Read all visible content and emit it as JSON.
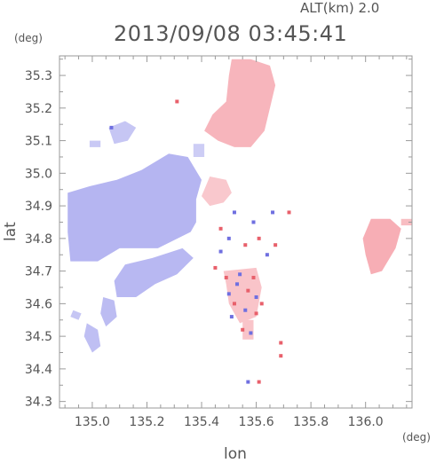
{
  "header": {
    "timestamp": "2013/09/08 03:45:41",
    "altitude": "ALT(km)  2.0",
    "y_unit": "(deg)",
    "x_unit": "(deg)"
  },
  "colors": {
    "positive": "#f3a8ad",
    "negative": "#b9b9f2",
    "axis": "#9a9a9a",
    "text": "#555555"
  },
  "chart_data": {
    "type": "heatmap",
    "xlabel": "lon",
    "ylabel": "lat",
    "xlim": [
      134.88,
      136.17
    ],
    "ylim": [
      34.28,
      35.36
    ],
    "xticks": [
      "135.0",
      "135.2",
      "135.4",
      "135.6",
      "135.8",
      "136.0"
    ],
    "xtick_values": [
      135.0,
      135.2,
      135.4,
      135.6,
      135.8,
      136.0
    ],
    "yticks": [
      "34.3",
      "34.4",
      "34.5",
      "34.6",
      "34.7",
      "34.8",
      "34.9",
      "35.0",
      "35.1",
      "35.2",
      "35.3"
    ],
    "ytick_values": [
      34.3,
      34.4,
      34.5,
      34.6,
      34.7,
      34.8,
      34.9,
      35.0,
      35.1,
      35.2,
      35.3
    ],
    "regions": [
      {
        "sign": "positive",
        "intensity": 0.45,
        "poly": [
          [
            135.51,
            35.35
          ],
          [
            135.58,
            35.35
          ],
          [
            135.65,
            35.33
          ],
          [
            135.67,
            35.27
          ],
          [
            135.65,
            35.2
          ],
          [
            135.63,
            35.13
          ],
          [
            135.58,
            35.08
          ],
          [
            135.52,
            35.08
          ],
          [
            135.46,
            35.1
          ],
          [
            135.41,
            35.13
          ],
          [
            135.44,
            35.18
          ],
          [
            135.49,
            35.22
          ],
          [
            135.5,
            35.3
          ]
        ]
      },
      {
        "sign": "positive",
        "intensity": 0.2,
        "poly": [
          [
            135.43,
            34.99
          ],
          [
            135.49,
            34.98
          ],
          [
            135.51,
            34.94
          ],
          [
            135.48,
            34.91
          ],
          [
            135.43,
            34.9
          ],
          [
            135.4,
            34.93
          ]
        ]
      },
      {
        "sign": "positive",
        "intensity": 0.55,
        "poly": [
          [
            136.02,
            34.86
          ],
          [
            136.09,
            34.86
          ],
          [
            136.13,
            34.83
          ],
          [
            136.11,
            34.77
          ],
          [
            136.06,
            34.7
          ],
          [
            136.02,
            34.69
          ],
          [
            136.0,
            34.75
          ],
          [
            135.99,
            34.8
          ]
        ]
      },
      {
        "sign": "positive",
        "intensity": 0.35,
        "poly": [
          [
            136.13,
            34.86
          ],
          [
            136.17,
            34.86
          ],
          [
            136.17,
            34.84
          ],
          [
            136.13,
            34.84
          ]
        ]
      },
      {
        "sign": "negative",
        "intensity": 0.55,
        "poly": [
          [
            134.91,
            34.94
          ],
          [
            134.99,
            34.96
          ],
          [
            135.09,
            34.98
          ],
          [
            135.18,
            35.01
          ],
          [
            135.28,
            35.06
          ],
          [
            135.35,
            35.05
          ],
          [
            135.4,
            34.98
          ],
          [
            135.38,
            34.92
          ],
          [
            135.38,
            34.85
          ],
          [
            135.36,
            34.82
          ],
          [
            135.24,
            34.77
          ],
          [
            135.1,
            34.77
          ],
          [
            135.02,
            34.73
          ],
          [
            134.92,
            34.73
          ],
          [
            134.91,
            34.82
          ]
        ]
      },
      {
        "sign": "negative",
        "intensity": 0.5,
        "poly": [
          [
            135.12,
            34.72
          ],
          [
            135.22,
            34.74
          ],
          [
            135.33,
            34.77
          ],
          [
            135.37,
            34.74
          ],
          [
            135.31,
            34.69
          ],
          [
            135.23,
            34.66
          ],
          [
            135.16,
            34.62
          ],
          [
            135.09,
            34.62
          ],
          [
            135.08,
            34.67
          ]
        ]
      },
      {
        "sign": "negative",
        "intensity": 0.45,
        "poly": [
          [
            135.04,
            34.62
          ],
          [
            135.08,
            34.61
          ],
          [
            135.09,
            34.56
          ],
          [
            135.05,
            34.53
          ],
          [
            135.03,
            34.57
          ]
        ]
      },
      {
        "sign": "negative",
        "intensity": 0.4,
        "poly": [
          [
            134.98,
            34.54
          ],
          [
            135.02,
            34.52
          ],
          [
            135.03,
            34.47
          ],
          [
            135.0,
            34.45
          ],
          [
            134.97,
            34.5
          ]
        ]
      },
      {
        "sign": "negative",
        "intensity": 0.3,
        "poly": [
          [
            134.93,
            34.58
          ],
          [
            134.96,
            34.57
          ],
          [
            134.95,
            34.55
          ],
          [
            134.92,
            34.56
          ]
        ]
      },
      {
        "sign": "negative",
        "intensity": 0.3,
        "poly": [
          [
            135.06,
            35.14
          ],
          [
            135.12,
            35.16
          ],
          [
            135.16,
            35.14
          ],
          [
            135.13,
            35.1
          ],
          [
            135.08,
            35.09
          ]
        ]
      },
      {
        "sign": "negative",
        "intensity": 0.25,
        "poly": [
          [
            134.99,
            35.1
          ],
          [
            135.03,
            35.1
          ],
          [
            135.03,
            35.08
          ],
          [
            134.99,
            35.08
          ]
        ]
      },
      {
        "sign": "negative",
        "intensity": 0.2,
        "poly": [
          [
            135.37,
            35.09
          ],
          [
            135.41,
            35.09
          ],
          [
            135.41,
            35.05
          ],
          [
            135.37,
            35.05
          ]
        ]
      },
      {
        "sign": "positive",
        "intensity": 0.25,
        "poly": [
          [
            135.48,
            34.7
          ],
          [
            135.6,
            34.71
          ],
          [
            135.62,
            34.65
          ],
          [
            135.6,
            34.56
          ],
          [
            135.54,
            34.54
          ],
          [
            135.5,
            34.6
          ],
          [
            135.49,
            34.66
          ]
        ]
      },
      {
        "sign": "positive",
        "intensity": 0.25,
        "poly": [
          [
            135.55,
            34.55
          ],
          [
            135.59,
            34.55
          ],
          [
            135.59,
            34.49
          ],
          [
            135.55,
            34.49
          ]
        ]
      }
    ],
    "speckles": [
      {
        "sign": "positive",
        "x": 135.47,
        "y": 34.83
      },
      {
        "sign": "negative",
        "x": 135.5,
        "y": 34.8
      },
      {
        "sign": "positive",
        "x": 135.56,
        "y": 34.78
      },
      {
        "sign": "negative",
        "x": 135.59,
        "y": 34.85
      },
      {
        "sign": "positive",
        "x": 135.61,
        "y": 34.8
      },
      {
        "sign": "negative",
        "x": 135.64,
        "y": 34.75
      },
      {
        "sign": "positive",
        "x": 135.67,
        "y": 34.78
      },
      {
        "sign": "negative",
        "x": 135.52,
        "y": 34.88
      },
      {
        "sign": "positive",
        "x": 135.49,
        "y": 34.68
      },
      {
        "sign": "negative",
        "x": 135.53,
        "y": 34.66
      },
      {
        "sign": "positive",
        "x": 135.57,
        "y": 34.64
      },
      {
        "sign": "negative",
        "x": 135.6,
        "y": 34.62
      },
      {
        "sign": "positive",
        "x": 135.52,
        "y": 34.6
      },
      {
        "sign": "negative",
        "x": 135.56,
        "y": 34.58
      },
      {
        "sign": "positive",
        "x": 135.59,
        "y": 34.68
      },
      {
        "sign": "negative",
        "x": 135.5,
        "y": 34.63
      },
      {
        "sign": "positive",
        "x": 135.55,
        "y": 34.52
      },
      {
        "sign": "negative",
        "x": 135.58,
        "y": 34.51
      },
      {
        "sign": "positive",
        "x": 135.6,
        "y": 34.57
      },
      {
        "sign": "negative",
        "x": 135.54,
        "y": 34.69
      },
      {
        "sign": "positive",
        "x": 135.69,
        "y": 34.48
      },
      {
        "sign": "positive",
        "x": 135.69,
        "y": 34.44
      },
      {
        "sign": "positive",
        "x": 135.61,
        "y": 34.36
      },
      {
        "sign": "negative",
        "x": 135.57,
        "y": 34.36
      },
      {
        "sign": "positive",
        "x": 135.45,
        "y": 34.71
      },
      {
        "sign": "negative",
        "x": 135.47,
        "y": 34.76
      },
      {
        "sign": "positive",
        "x": 135.72,
        "y": 34.88
      },
      {
        "sign": "negative",
        "x": 135.66,
        "y": 34.88
      },
      {
        "sign": "positive",
        "x": 135.31,
        "y": 35.22
      },
      {
        "sign": "negative",
        "x": 135.07,
        "y": 35.14
      },
      {
        "sign": "positive",
        "x": 135.62,
        "y": 34.6
      },
      {
        "sign": "negative",
        "x": 135.51,
        "y": 34.56
      }
    ]
  }
}
